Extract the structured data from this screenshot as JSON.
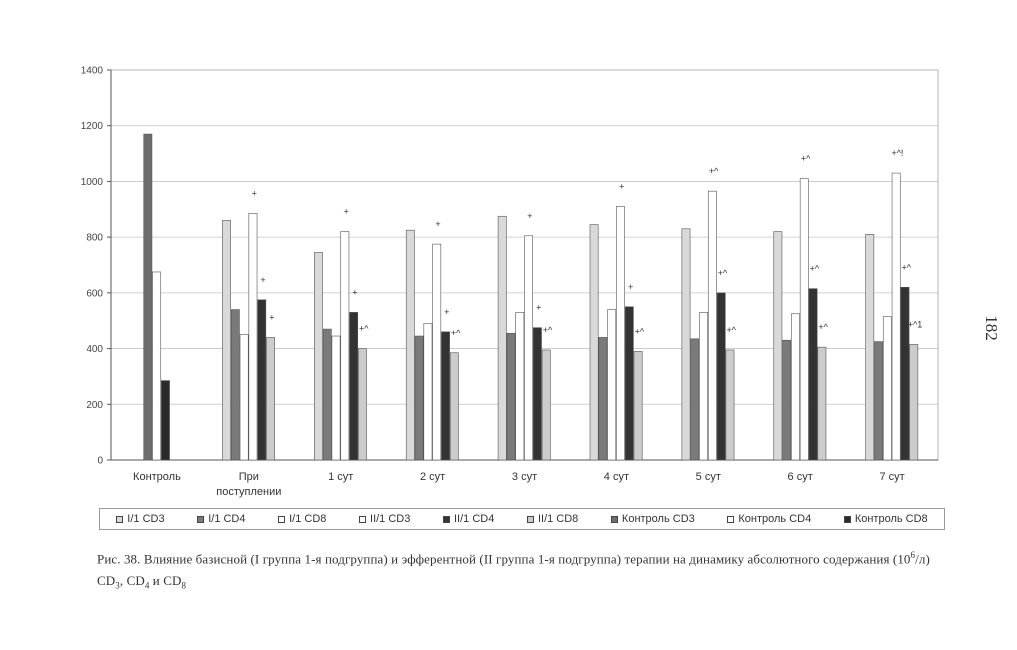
{
  "page_number": "182",
  "caption": {
    "text_before_sup": "Рис. 38. Влияние базисной (I группа 1-я подгруппа) и эфферентной (II группа 1-я подгруппа) терапии на динамику абсолютного содержания (10",
    "sup": "6",
    "text_after_sup": "/л) CD",
    "sub1": "3",
    "sep1": ", CD",
    "sub2": "4",
    "sep2": " и CD",
    "sub3": "8"
  },
  "colors": {
    "I1_CD3": "#d9d9d9",
    "I1_CD4": "#7a7a7a",
    "I1_CD8": "#ffffff",
    "II1_CD3": "#ffffff",
    "II1_CD4": "#333333",
    "II1_CD8": "#cccccc",
    "Kontrol_CD3": "#6e6e6e",
    "Kontrol_CD4": "#ffffff",
    "Kontrol_CD8": "#2a2a2a"
  },
  "chart_data": {
    "type": "bar",
    "categories": [
      "Контроль",
      "При поступлении",
      "1 сут",
      "2 сут",
      "3 сут",
      "4 сут",
      "5 сут",
      "6 сут",
      "7 сут"
    ],
    "category_lines": [
      [
        "Контроль"
      ],
      [
        "При",
        "поступлении"
      ],
      [
        "1 сут"
      ],
      [
        "2 сут"
      ],
      [
        "3 сут"
      ],
      [
        "4 сут"
      ],
      [
        "5 сут"
      ],
      [
        "6 сут"
      ],
      [
        "7 сут"
      ]
    ],
    "ylim": [
      0,
      1400
    ],
    "yticks": [
      0,
      200,
      400,
      600,
      800,
      1000,
      1200,
      1400
    ],
    "grid": true,
    "legend_position": "bottom",
    "series": [
      {
        "name": "I/1 CD3",
        "values": [
          null,
          860,
          745,
          825,
          875,
          845,
          830,
          820,
          810
        ]
      },
      {
        "name": "I/1 CD4",
        "values": [
          null,
          540,
          470,
          445,
          455,
          440,
          435,
          430,
          425
        ]
      },
      {
        "name": "I/1 CD8",
        "values": [
          null,
          450,
          445,
          490,
          530,
          540,
          530,
          525,
          515
        ]
      },
      {
        "name": "II/1 CD3",
        "values": [
          null,
          885,
          820,
          775,
          805,
          910,
          965,
          1010,
          1030
        ]
      },
      {
        "name": "II/1 CD4",
        "values": [
          null,
          575,
          530,
          460,
          475,
          550,
          600,
          615,
          620
        ]
      },
      {
        "name": "II/1 CD8",
        "values": [
          null,
          440,
          400,
          385,
          395,
          390,
          395,
          405,
          415
        ]
      },
      {
        "name": "Контроль CD3",
        "values": [
          1170,
          null,
          null,
          null,
          null,
          null,
          null,
          null,
          null
        ]
      },
      {
        "name": "Контроль CD4",
        "values": [
          675,
          null,
          null,
          null,
          null,
          null,
          null,
          null,
          null
        ]
      },
      {
        "name": "Контроль CD8",
        "values": [
          285,
          null,
          null,
          null,
          null,
          null,
          null,
          null,
          null
        ]
      }
    ],
    "annotations": [
      {
        "category": "При поступлении",
        "series": "II/1 CD3",
        "text": "+"
      },
      {
        "category": "При поступлении",
        "series": "II/1 CD4",
        "text": "+"
      },
      {
        "category": "При поступлении",
        "series": "II/1 CD8",
        "text": "+"
      },
      {
        "category": "1 сут",
        "series": "II/1 CD3",
        "text": "+"
      },
      {
        "category": "1 сут",
        "series": "II/1 CD4",
        "text": "+"
      },
      {
        "category": "1 сут",
        "series": "II/1 CD8",
        "text": "+^"
      },
      {
        "category": "2 сут",
        "series": "II/1 CD3",
        "text": "+"
      },
      {
        "category": "2 сут",
        "series": "II/1 CD4",
        "text": "+"
      },
      {
        "category": "2 сут",
        "series": "II/1 CD8",
        "text": "+^"
      },
      {
        "category": "3 сут",
        "series": "II/1 CD3",
        "text": "+"
      },
      {
        "category": "3 сут",
        "series": "II/1 CD4",
        "text": "+"
      },
      {
        "category": "3 сут",
        "series": "II/1 CD8",
        "text": "+^"
      },
      {
        "category": "4 сут",
        "series": "II/1 CD3",
        "text": "+"
      },
      {
        "category": "4 сут",
        "series": "II/1 CD4",
        "text": "+"
      },
      {
        "category": "4 сут",
        "series": "II/1 CD8",
        "text": "+^"
      },
      {
        "category": "5 сут",
        "series": "II/1 CD3",
        "text": "+^"
      },
      {
        "category": "5 сут",
        "series": "II/1 CD4",
        "text": "+^"
      },
      {
        "category": "5 сут",
        "series": "II/1 CD8",
        "text": "+^"
      },
      {
        "category": "6 сут",
        "series": "II/1 CD3",
        "text": "+^"
      },
      {
        "category": "6 сут",
        "series": "II/1 CD4",
        "text": "+^"
      },
      {
        "category": "6 сут",
        "series": "II/1 CD8",
        "text": "+^"
      },
      {
        "category": "7 сут",
        "series": "II/1 CD3",
        "text": "+^!"
      },
      {
        "category": "7 сут",
        "series": "II/1 CD4",
        "text": "+^"
      },
      {
        "category": "7 сут",
        "series": "II/1 CD8",
        "text": "+^1"
      }
    ]
  }
}
